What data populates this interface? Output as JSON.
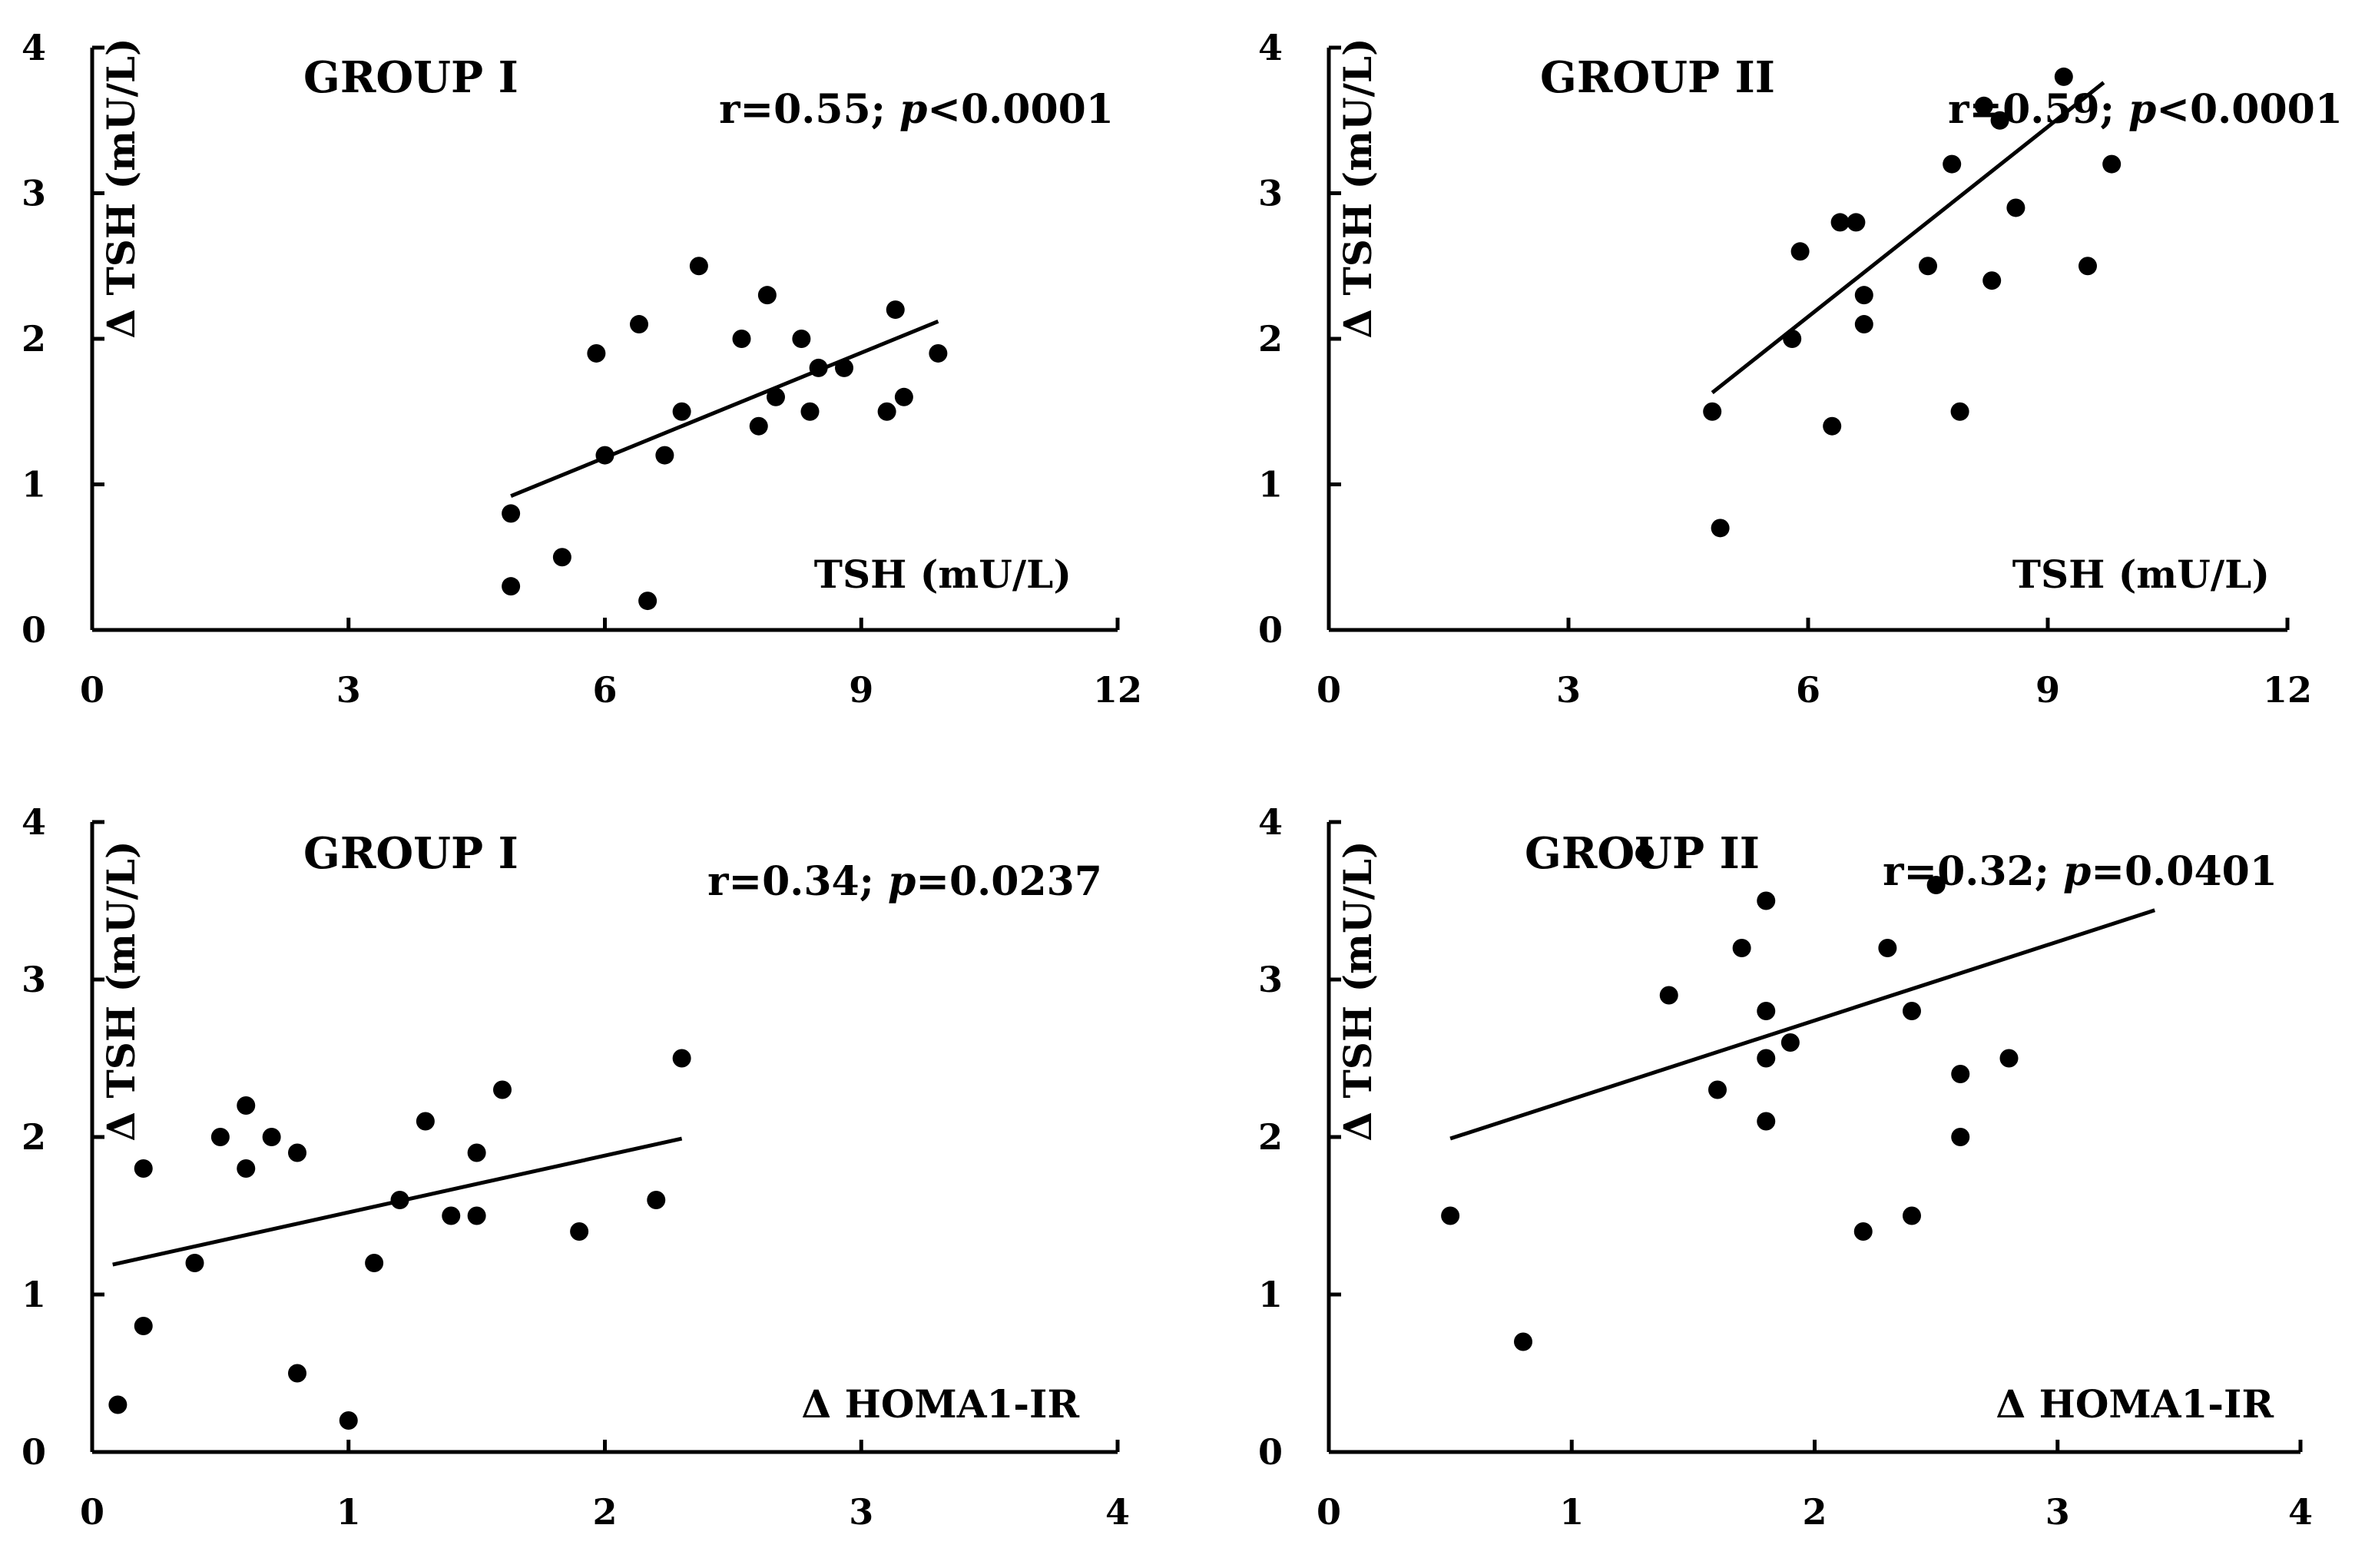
{
  "chart_data": [
    {
      "type": "scatter",
      "title": "GROUP I",
      "stat": {
        "r_text": "r=0.55; ",
        "p_symbol": "p",
        "p_text": "<0.0001"
      },
      "xlabel": "TSH (mU/L)",
      "ylabel": "Δ TSH (mU/L)",
      "xlim": [
        0,
        12
      ],
      "ylim": [
        0,
        4
      ],
      "xticks": [
        "0",
        "3",
        "6",
        "9",
        "12"
      ],
      "yticks": [
        "0",
        "1",
        "2",
        "3",
        "4"
      ],
      "points": [
        [
          4.9,
          0.8
        ],
        [
          4.9,
          0.3
        ],
        [
          5.5,
          0.5
        ],
        [
          5.9,
          1.9
        ],
        [
          6.0,
          1.2
        ],
        [
          6.4,
          2.1
        ],
        [
          6.5,
          0.2
        ],
        [
          6.7,
          1.2
        ],
        [
          6.9,
          1.5
        ],
        [
          7.1,
          2.5
        ],
        [
          7.6,
          2.0
        ],
        [
          7.8,
          1.4
        ],
        [
          7.9,
          2.3
        ],
        [
          8.0,
          1.6
        ],
        [
          8.3,
          2.0
        ],
        [
          8.4,
          1.5
        ],
        [
          8.5,
          1.8
        ],
        [
          8.8,
          1.8
        ],
        [
          9.3,
          1.5
        ],
        [
          9.4,
          2.2
        ],
        [
          9.5,
          1.6
        ],
        [
          9.9,
          1.9
        ]
      ],
      "fit_line": [
        [
          4.9,
          0.92
        ],
        [
          9.9,
          2.12
        ]
      ]
    },
    {
      "type": "scatter",
      "title": "GROUP II",
      "stat": {
        "r_text": "r=0.59; ",
        "p_symbol": "p",
        "p_text": "<0.0001"
      },
      "xlabel": "TSH (mU/L)",
      "ylabel": "Δ TSH (mU/L)",
      "xlim": [
        0,
        12
      ],
      "ylim": [
        0,
        4
      ],
      "xticks": [
        "0",
        "3",
        "6",
        "9",
        "12"
      ],
      "yticks": [
        "0",
        "1",
        "2",
        "3",
        "4"
      ],
      "points": [
        [
          4.8,
          1.5
        ],
        [
          4.9,
          0.7
        ],
        [
          5.8,
          2.0
        ],
        [
          5.9,
          2.6
        ],
        [
          6.3,
          1.4
        ],
        [
          6.4,
          2.8
        ],
        [
          6.6,
          2.8
        ],
        [
          6.7,
          2.3
        ],
        [
          6.7,
          2.1
        ],
        [
          7.5,
          2.5
        ],
        [
          7.8,
          3.2
        ],
        [
          7.9,
          1.5
        ],
        [
          8.2,
          3.6
        ],
        [
          8.3,
          2.4
        ],
        [
          8.4,
          3.5
        ],
        [
          8.6,
          2.9
        ],
        [
          9.2,
          3.8
        ],
        [
          9.5,
          2.5
        ],
        [
          9.8,
          3.2
        ]
      ],
      "fit_line": [
        [
          4.8,
          1.63
        ],
        [
          9.7,
          3.76
        ]
      ]
    },
    {
      "type": "scatter",
      "title": "GROUP I",
      "stat": {
        "r_text": "r=0.34; ",
        "p_symbol": "p",
        "p_text": "=0.0237"
      },
      "xlabel": "Δ HOMA1-IR",
      "ylabel": "Δ TSH (mU/L)",
      "xlim": [
        0,
        4
      ],
      "ylim": [
        0,
        4
      ],
      "xticks": [
        "0",
        "1",
        "2",
        "3",
        "4"
      ],
      "yticks": [
        "0",
        "1",
        "2",
        "3",
        "4"
      ],
      "points": [
        [
          0.1,
          0.3
        ],
        [
          0.2,
          1.8
        ],
        [
          0.2,
          0.8
        ],
        [
          0.4,
          1.2
        ],
        [
          0.5,
          2.0
        ],
        [
          0.6,
          2.2
        ],
        [
          0.6,
          1.8
        ],
        [
          0.7,
          2.0
        ],
        [
          0.8,
          1.9
        ],
        [
          0.8,
          0.5
        ],
        [
          1.0,
          0.2
        ],
        [
          1.1,
          1.2
        ],
        [
          1.2,
          1.6
        ],
        [
          1.3,
          2.1
        ],
        [
          1.4,
          1.5
        ],
        [
          1.5,
          1.9
        ],
        [
          1.5,
          1.5
        ],
        [
          1.6,
          2.3
        ],
        [
          1.9,
          1.4
        ],
        [
          2.2,
          1.6
        ],
        [
          2.3,
          2.5
        ]
      ],
      "fit_line": [
        [
          0.08,
          1.19
        ],
        [
          2.3,
          1.99
        ]
      ]
    },
    {
      "type": "scatter",
      "title": "GROUP II",
      "stat": {
        "r_text": "r=0.32; ",
        "p_symbol": "p",
        "p_text": "=0.0401"
      },
      "xlabel": "Δ HOMA1-IR",
      "ylabel": "Δ TSH (mU/L)",
      "xlim": [
        0,
        4
      ],
      "ylim": [
        0,
        4
      ],
      "xticks": [
        "0",
        "1",
        "2",
        "3",
        "4"
      ],
      "yticks": [
        "0",
        "1",
        "2",
        "3",
        "4"
      ],
      "points": [
        [
          0.5,
          1.5
        ],
        [
          0.8,
          0.7
        ],
        [
          1.3,
          3.8
        ],
        [
          1.4,
          2.9
        ],
        [
          1.6,
          2.3
        ],
        [
          1.7,
          3.2
        ],
        [
          1.8,
          3.5
        ],
        [
          1.8,
          2.8
        ],
        [
          1.8,
          2.5
        ],
        [
          1.8,
          2.1
        ],
        [
          1.9,
          2.6
        ],
        [
          2.2,
          1.4
        ],
        [
          2.3,
          3.2
        ],
        [
          2.4,
          2.8
        ],
        [
          2.4,
          1.5
        ],
        [
          2.5,
          3.6
        ],
        [
          2.6,
          2.4
        ],
        [
          2.6,
          2.0
        ],
        [
          2.8,
          2.5
        ]
      ],
      "fit_line": [
        [
          0.5,
          1.99
        ],
        [
          3.4,
          3.44
        ]
      ]
    }
  ]
}
